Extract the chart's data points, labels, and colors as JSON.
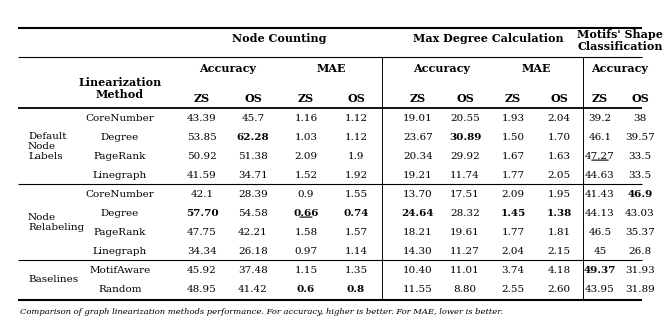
{
  "row_groups": [
    {
      "group_label": "Default\nNode\nLabels",
      "rows": [
        {
          "method": "CoreNumber",
          "data": [
            "43.39",
            "45.7",
            "1.16",
            "1.12",
            "19.01",
            "20.55",
            "1.93",
            "2.04",
            "39.2",
            "38"
          ],
          "bold": [],
          "underline": []
        },
        {
          "method": "Degree",
          "data": [
            "53.85",
            "62.28",
            "1.03",
            "1.12",
            "23.67",
            "30.89",
            "1.50",
            "1.70",
            "46.1",
            "39.57"
          ],
          "bold": [
            1,
            5
          ],
          "underline": []
        },
        {
          "method": "PageRank",
          "data": [
            "50.92",
            "51.38",
            "2.09",
            "1.9",
            "20.34",
            "29.92",
            "1.67",
            "1.63",
            "47.27",
            "33.5"
          ],
          "bold": [],
          "underline": [
            8
          ]
        },
        {
          "method": "Linegraph",
          "data": [
            "41.59",
            "34.71",
            "1.52",
            "1.92",
            "19.21",
            "11.74",
            "1.77",
            "2.05",
            "44.63",
            "33.5"
          ],
          "bold": [],
          "underline": []
        }
      ]
    },
    {
      "group_label": "Node\nRelabeling",
      "rows": [
        {
          "method": "CoreNumber",
          "data": [
            "42.1",
            "28.39",
            "0.9",
            "1.55",
            "13.70",
            "17.51",
            "2.09",
            "1.95",
            "41.43",
            "46.9"
          ],
          "bold": [
            9
          ],
          "underline": []
        },
        {
          "method": "Degree",
          "data": [
            "57.70",
            "54.58",
            "0.66",
            "0.74",
            "24.64",
            "28.32",
            "1.45",
            "1.38",
            "44.13",
            "43.03"
          ],
          "bold": [
            0,
            2,
            3,
            4,
            6,
            7
          ],
          "underline": [
            2
          ]
        },
        {
          "method": "PageRank",
          "data": [
            "47.75",
            "42.21",
            "1.58",
            "1.57",
            "18.21",
            "19.61",
            "1.77",
            "1.81",
            "46.5",
            "35.37"
          ],
          "bold": [],
          "underline": []
        },
        {
          "method": "Linegraph",
          "data": [
            "34.34",
            "26.18",
            "0.97",
            "1.14",
            "14.30",
            "11.27",
            "2.04",
            "2.15",
            "45",
            "26.8"
          ],
          "bold": [],
          "underline": []
        }
      ]
    },
    {
      "group_label": "Baselines",
      "rows": [
        {
          "method": "MotifAware",
          "data": [
            "45.92",
            "37.48",
            "1.15",
            "1.35",
            "10.40",
            "11.01",
            "3.74",
            "4.18",
            "49.37",
            "31.93"
          ],
          "bold": [
            8
          ],
          "underline": []
        },
        {
          "method": "Random",
          "data": [
            "48.95",
            "41.42",
            "0.6",
            "0.8",
            "11.55",
            "8.80",
            "2.55",
            "2.60",
            "43.95",
            "31.89"
          ],
          "bold": [
            2,
            3
          ],
          "underline": []
        }
      ]
    }
  ],
  "footer": "Comparison of graph linearization methods performance. For accuracy, higher is better. For MAE, lower is better.",
  "background_color": "#ffffff",
  "font_size": 7.5,
  "header_font_size": 8.0
}
